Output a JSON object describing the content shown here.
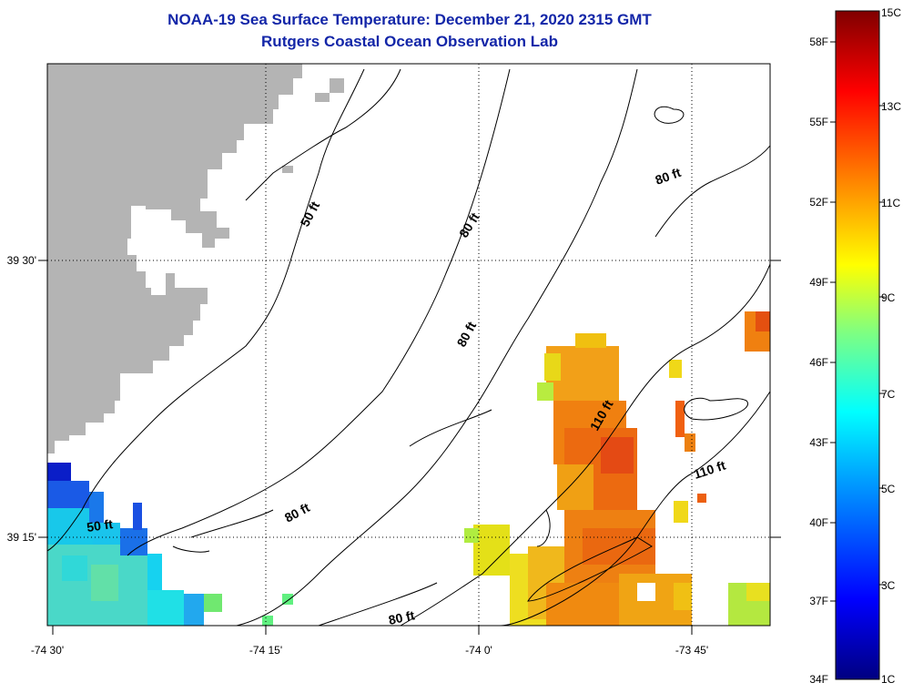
{
  "title": "NOAA-19 Sea Surface Temperature:  December 21, 2020 2315 GMT",
  "subtitle": "Rutgers Coastal Ocean Observation Lab",
  "lon_ticks": [
    "-74 30'",
    "-74 15'",
    "-74 0'",
    "-73 45'"
  ],
  "lat_ticks": [
    "39 30'",
    "39 15'"
  ],
  "contour_labels": [
    "50 ft",
    "50 ft",
    "80 ft",
    "80 ft",
    "80 ft",
    "80 ft",
    "80 ft",
    "110 ft",
    "110 ft"
  ],
  "colorbar": {
    "celsius_labels": [
      "15C",
      "13C",
      "11C",
      "9C",
      "7C",
      "5C",
      "3C",
      "1C"
    ],
    "fahrenheit_labels": [
      "58F",
      "55F",
      "52F",
      "49F",
      "46F",
      "43F",
      "40F",
      "37F",
      "34F"
    ],
    "colors": [
      "#000080",
      "#0000ff",
      "#00a0ff",
      "#00ffff",
      "#80ff80",
      "#ffff00",
      "#ff8000",
      "#ff0000",
      "#800000"
    ]
  },
  "colors": {
    "land": "#b4b4b4",
    "title": "#1326a8",
    "contour": "#000000"
  }
}
